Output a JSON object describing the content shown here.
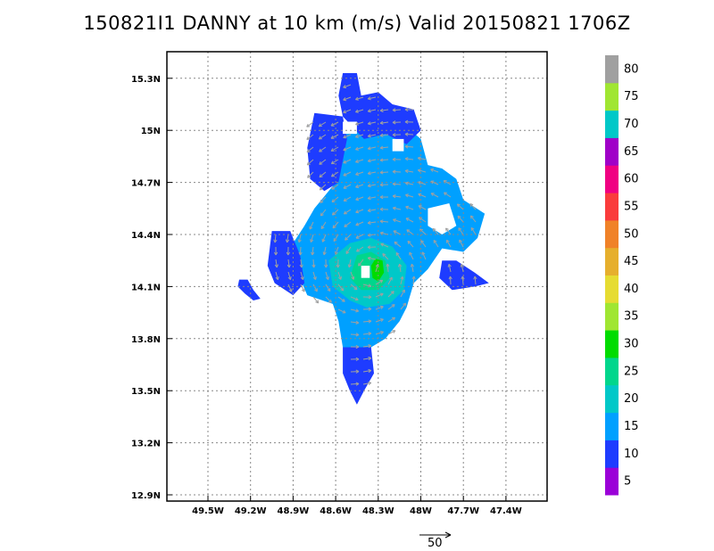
{
  "title": "150821I1 DANNY at 10 km (m/s) Valid 20150821 1706Z",
  "chart_data": {
    "type": "heatmap",
    "title": "150821I1 DANNY at 10 km (m/s) Valid 20150821 1706Z",
    "units": "m/s",
    "xlim": [
      49.75,
      47.25
    ],
    "ylim": [
      12.9,
      15.4
    ],
    "x_ticks": [
      "49.5W",
      "49.2W",
      "48.9W",
      "48.6W",
      "48.3W",
      "48W",
      "47.7W",
      "47.4W"
    ],
    "x_tick_values": [
      49.5,
      49.2,
      48.9,
      48.6,
      48.3,
      48.0,
      47.7,
      47.4
    ],
    "y_ticks": [
      "12.9N",
      "13.2N",
      "13.5N",
      "13.8N",
      "14.1N",
      "14.4N",
      "14.7N",
      "15N",
      "15.3N"
    ],
    "y_tick_values": [
      12.9,
      13.2,
      13.5,
      13.8,
      14.1,
      14.4,
      14.7,
      15.0,
      15.3
    ],
    "grid": true,
    "colorbar": {
      "labels": [
        "5",
        "10",
        "15",
        "20",
        "25",
        "30",
        "35",
        "40",
        "45",
        "50",
        "55",
        "60",
        "65",
        "70",
        "75",
        "80"
      ],
      "colors": [
        "#9b00d8",
        "#1e3cff",
        "#00a0ff",
        "#00c8c8",
        "#00d68c",
        "#00dc00",
        "#a0e632",
        "#e6dc32",
        "#e6af2d",
        "#f08228",
        "#fa3c3c",
        "#f00082",
        "#a000c8",
        "#00c8c8",
        "#a0e632",
        "#a0a0a0"
      ]
    },
    "storm_center": {
      "lon": 48.35,
      "lat": 14.2
    },
    "regions": [
      {
        "level": 10,
        "polygon": [
          [
            48.55,
            15.33
          ],
          [
            48.45,
            15.33
          ],
          [
            48.42,
            15.2
          ],
          [
            48.3,
            15.22
          ],
          [
            48.2,
            15.15
          ],
          [
            48.05,
            15.12
          ],
          [
            48.0,
            15.0
          ],
          [
            48.1,
            14.92
          ],
          [
            48.25,
            14.98
          ],
          [
            48.4,
            14.95
          ],
          [
            48.55,
            15.08
          ],
          [
            48.58,
            15.2
          ]
        ]
      },
      {
        "level": 10,
        "polygon": [
          [
            48.75,
            15.1
          ],
          [
            48.55,
            15.08
          ],
          [
            48.52,
            14.95
          ],
          [
            48.58,
            14.7
          ],
          [
            48.68,
            14.65
          ],
          [
            48.78,
            14.72
          ],
          [
            48.8,
            14.9
          ]
        ]
      },
      {
        "level": 10,
        "polygon": [
          [
            49.05,
            14.42
          ],
          [
            48.92,
            14.42
          ],
          [
            48.85,
            14.28
          ],
          [
            48.82,
            14.12
          ],
          [
            48.9,
            14.05
          ],
          [
            49.03,
            14.12
          ],
          [
            49.08,
            14.22
          ]
        ]
      },
      {
        "level": 10,
        "polygon": [
          [
            49.28,
            14.14
          ],
          [
            49.22,
            14.14
          ],
          [
            49.18,
            14.08
          ],
          [
            49.13,
            14.03
          ],
          [
            49.18,
            14.02
          ],
          [
            49.24,
            14.06
          ],
          [
            49.29,
            14.1
          ]
        ]
      },
      {
        "level": 10,
        "polygon": [
          [
            48.55,
            13.75
          ],
          [
            48.35,
            13.75
          ],
          [
            48.33,
            13.6
          ],
          [
            48.4,
            13.5
          ],
          [
            48.45,
            13.42
          ],
          [
            48.5,
            13.5
          ],
          [
            48.55,
            13.6
          ]
        ]
      },
      {
        "level": 10,
        "polygon": [
          [
            47.85,
            14.25
          ],
          [
            47.75,
            14.25
          ],
          [
            47.62,
            14.18
          ],
          [
            47.52,
            14.12
          ],
          [
            47.62,
            14.1
          ],
          [
            47.78,
            14.08
          ],
          [
            47.87,
            14.15
          ]
        ]
      },
      {
        "level": 15,
        "polygon": [
          [
            48.55,
            14.98
          ],
          [
            48.4,
            15.02
          ],
          [
            48.25,
            15.05
          ],
          [
            48.1,
            15.02
          ],
          [
            48.0,
            14.95
          ],
          [
            47.95,
            14.8
          ],
          [
            47.85,
            14.78
          ],
          [
            47.75,
            14.72
          ],
          [
            47.7,
            14.6
          ],
          [
            47.55,
            14.52
          ],
          [
            47.6,
            14.38
          ],
          [
            47.7,
            14.3
          ],
          [
            47.85,
            14.32
          ],
          [
            47.95,
            14.2
          ],
          [
            48.05,
            14.12
          ],
          [
            48.1,
            13.98
          ],
          [
            48.15,
            13.9
          ],
          [
            48.25,
            13.8
          ],
          [
            48.35,
            13.75
          ],
          [
            48.45,
            13.72
          ],
          [
            48.55,
            13.75
          ],
          [
            48.58,
            13.9
          ],
          [
            48.62,
            14.0
          ],
          [
            48.8,
            14.05
          ],
          [
            48.88,
            14.2
          ],
          [
            48.9,
            14.35
          ],
          [
            48.82,
            14.45
          ],
          [
            48.75,
            14.55
          ],
          [
            48.68,
            14.62
          ],
          [
            48.6,
            14.7
          ],
          [
            48.62,
            14.85
          ]
        ]
      },
      {
        "level": 20,
        "polygon": [
          [
            48.5,
            14.35
          ],
          [
            48.35,
            14.38
          ],
          [
            48.2,
            14.33
          ],
          [
            48.1,
            14.22
          ],
          [
            48.12,
            14.08
          ],
          [
            48.22,
            14.0
          ],
          [
            48.38,
            13.98
          ],
          [
            48.5,
            14.02
          ],
          [
            48.62,
            14.1
          ],
          [
            48.65,
            14.25
          ]
        ]
      },
      {
        "level": 25,
        "polygon": [
          [
            48.45,
            14.28
          ],
          [
            48.35,
            14.3
          ],
          [
            48.25,
            14.25
          ],
          [
            48.22,
            14.15
          ],
          [
            48.3,
            14.08
          ],
          [
            48.42,
            14.08
          ],
          [
            48.5,
            14.15
          ]
        ]
      },
      {
        "level": 30,
        "polygon": [
          [
            48.32,
            14.26
          ],
          [
            48.27,
            14.25
          ],
          [
            48.26,
            14.18
          ],
          [
            48.3,
            14.13
          ],
          [
            48.34,
            14.15
          ],
          [
            48.35,
            14.22
          ]
        ]
      }
    ],
    "gaps": [
      {
        "polygon": [
          [
            48.42,
            14.22
          ],
          [
            48.36,
            14.22
          ],
          [
            48.36,
            14.15
          ],
          [
            48.42,
            14.15
          ]
        ]
      },
      {
        "polygon": [
          [
            48.2,
            14.95
          ],
          [
            48.12,
            14.95
          ],
          [
            48.12,
            14.88
          ],
          [
            48.2,
            14.88
          ]
        ]
      },
      {
        "polygon": [
          [
            47.95,
            14.55
          ],
          [
            47.8,
            14.58
          ],
          [
            47.75,
            14.45
          ],
          [
            47.85,
            14.4
          ],
          [
            47.95,
            14.45
          ]
        ]
      },
      {
        "polygon": [
          [
            48.55,
            15.05
          ],
          [
            48.45,
            15.05
          ],
          [
            48.45,
            14.98
          ],
          [
            48.55,
            14.98
          ]
        ]
      }
    ]
  },
  "wind_vectors": {
    "reference_label": "50",
    "reference_speed": 50
  }
}
